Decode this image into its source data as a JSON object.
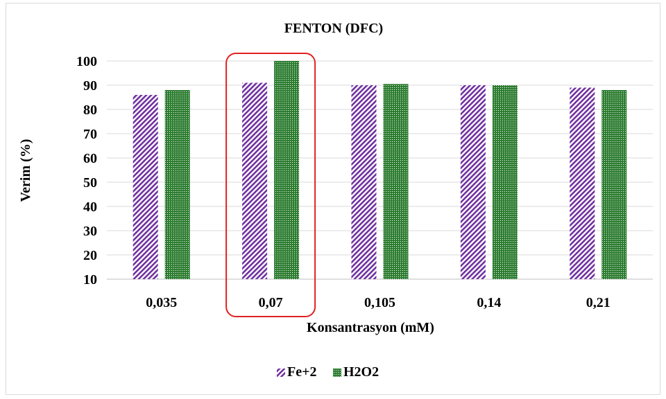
{
  "chart_data": {
    "type": "bar",
    "title": "FENTON (DFC)",
    "xlabel": "Konsantrasyon (mM)",
    "ylabel": "Verim (%)",
    "categories": [
      "0,035",
      "0,07",
      "0,105",
      "0,14",
      "0,21"
    ],
    "ylim": [
      10,
      100
    ],
    "yticks": [
      10,
      20,
      30,
      40,
      50,
      60,
      70,
      80,
      90,
      100
    ],
    "grid": true,
    "legend_position": "bottom",
    "series": [
      {
        "name": "Fe+2",
        "values": [
          86,
          91,
          90,
          90,
          89
        ],
        "color": "#7030a0",
        "pattern": "diagonal-stripes"
      },
      {
        "name": "H2O2",
        "values": [
          88,
          100,
          90.5,
          90,
          88
        ],
        "color": "#2e7d32",
        "pattern": "dots"
      }
    ],
    "highlight": {
      "category": "0,07",
      "color": "#e02020"
    }
  }
}
